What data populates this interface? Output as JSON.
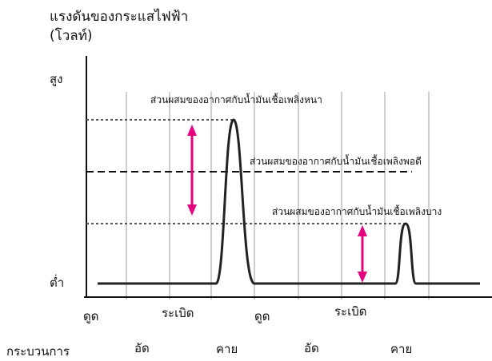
{
  "title": {
    "line1": "แรงดันของกระแสไฟฟ้า",
    "line2": "(โวลท์)"
  },
  "axis": {
    "y_high": "สูง",
    "y_low": "ต่ำ",
    "x_label": "กระบวนการ"
  },
  "annotations": {
    "rich": "ส่วนผสมของอากาศกับน้ำมันเชื้อเพลิงหนา",
    "correct": "ส่วนผสมของอากาศกับน้ำมันเชื้อเพลิงพอดี",
    "lean": "ส่วนผสมของอากาศกับน้ำมันเชื้อเพลิงบาง"
  },
  "strokes_top": [
    "ดูด",
    "ระเบิด",
    "ดูด",
    "ระเบิด"
  ],
  "strokes_bottom": [
    "อัด",
    "คาย",
    "อัด",
    "คาย"
  ],
  "colors": {
    "arrow": "#e5007e",
    "line": "#222222",
    "grid": "#bdbdbd"
  }
}
